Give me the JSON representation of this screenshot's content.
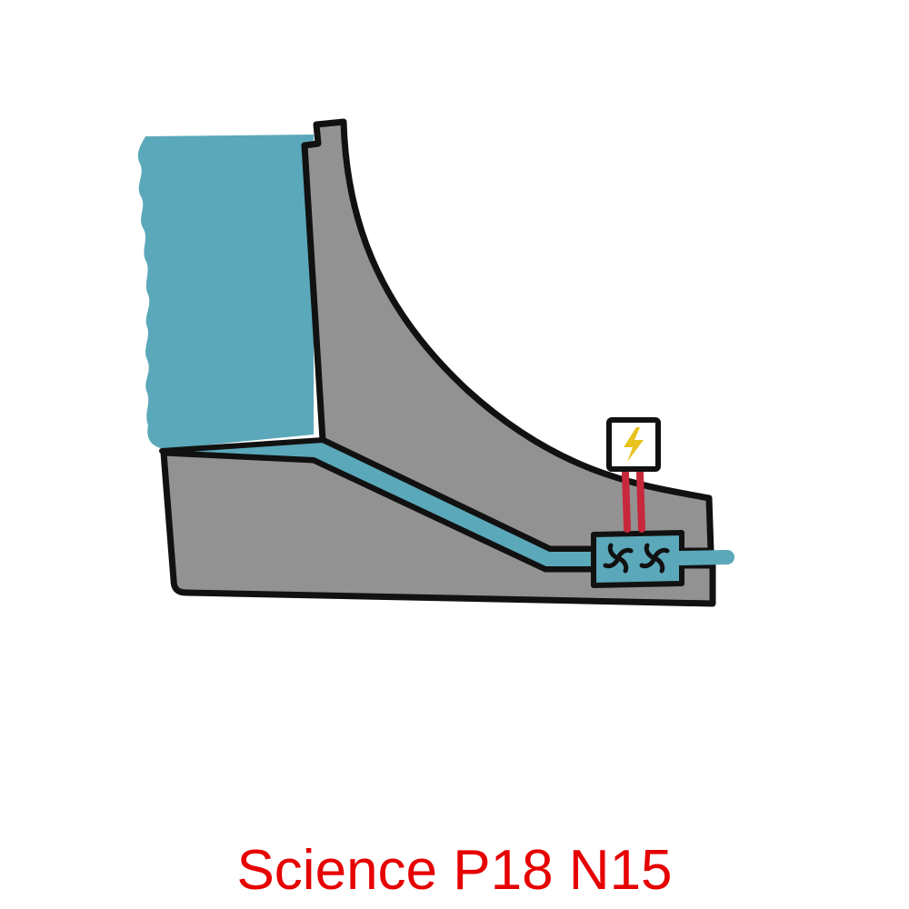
{
  "caption": {
    "text": "Science P18 N15",
    "color": "#e60000"
  },
  "colors": {
    "water": "#5aa8b9",
    "dam": "#929292",
    "outline": "#111111",
    "wire": "#c8283c",
    "bolt": "#e8c21e",
    "background": "#ffffff"
  },
  "icons": {
    "generator": "lightning-bolt-icon",
    "turbine": "turbine-icon"
  }
}
